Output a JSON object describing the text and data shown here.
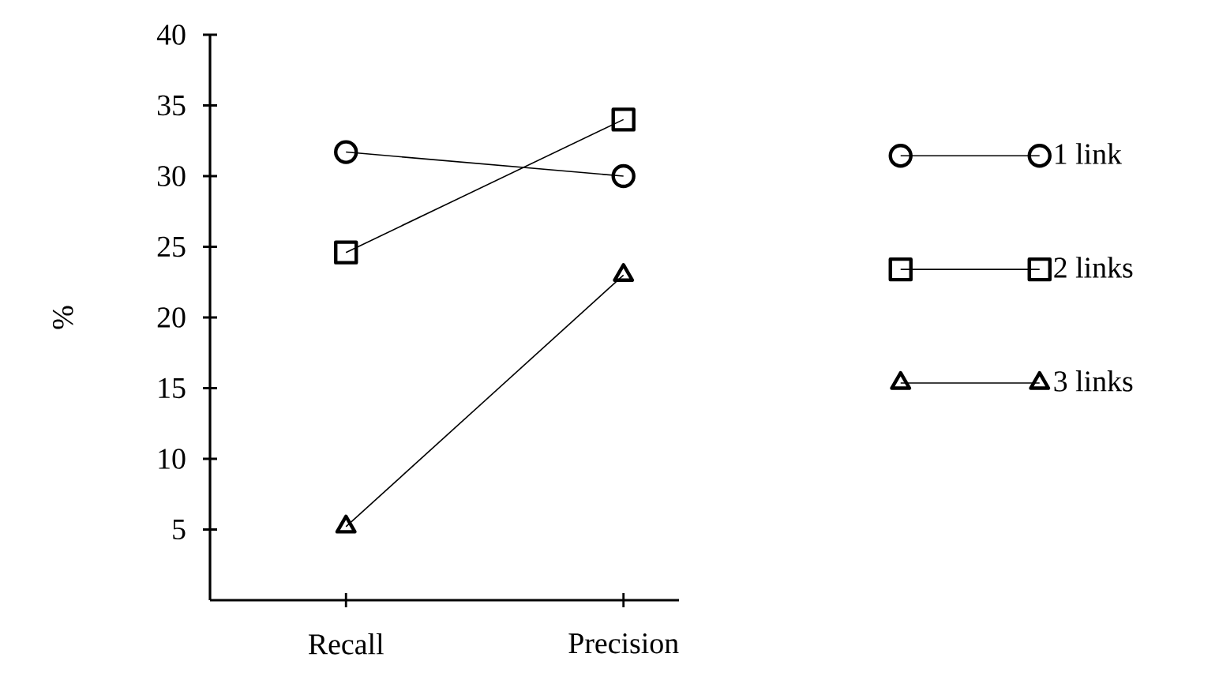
{
  "chart_data": {
    "type": "line",
    "ylabel": "%",
    "categories": [
      "Recall",
      "Precision"
    ],
    "series": [
      {
        "name": "1 link",
        "color": "#000000",
        "marker": "circle",
        "values": [
          31.7,
          30
        ]
      },
      {
        "name": "2 links",
        "color": "#000000",
        "marker": "square",
        "values": [
          24.6,
          34
        ]
      },
      {
        "name": "3 links",
        "color": "#000000",
        "marker": "triangle",
        "values": [
          5.2,
          23
        ]
      }
    ],
    "ylim": [
      0,
      40
    ],
    "yticks": [
      5,
      10,
      15,
      20,
      25,
      30,
      35,
      40
    ],
    "grid": false,
    "legend": "right",
    "line_style": "solid"
  }
}
